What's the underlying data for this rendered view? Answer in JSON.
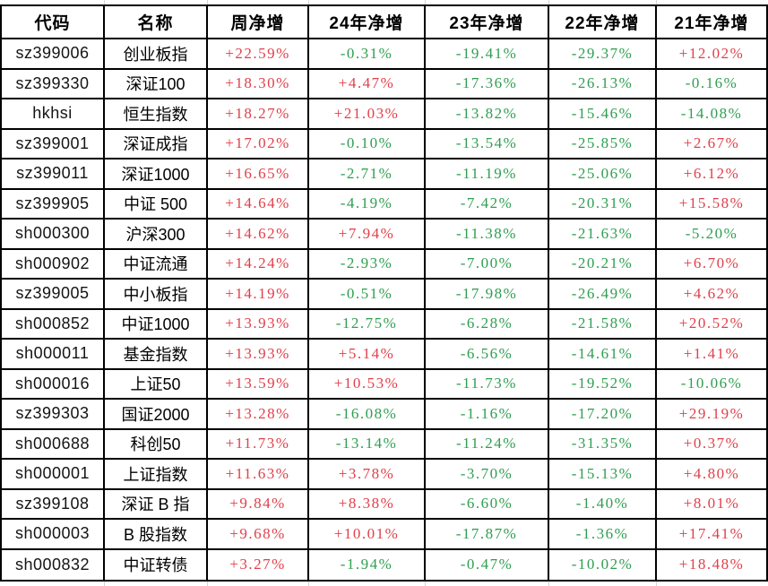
{
  "table": {
    "headers": [
      "代码",
      "名称",
      "周净增",
      "24年净增",
      "23年净增",
      "22年净增",
      "21年净增"
    ],
    "rows": [
      {
        "code": "sz399006",
        "name": "创业板指",
        "values": [
          "+22.59%",
          "-0.31%",
          "-19.41%",
          "-29.37%",
          "+12.02%"
        ]
      },
      {
        "code": "sz399330",
        "name": "深证100",
        "values": [
          "+18.30%",
          "+4.47%",
          "-17.36%",
          "-26.13%",
          "-0.16%"
        ]
      },
      {
        "code": "hkhsi",
        "name": "恒生指数",
        "values": [
          "+18.27%",
          "+21.03%",
          "-13.82%",
          "-15.46%",
          "-14.08%"
        ]
      },
      {
        "code": "sz399001",
        "name": "深证成指",
        "values": [
          "+17.02%",
          "-0.10%",
          "-13.54%",
          "-25.85%",
          "+2.67%"
        ]
      },
      {
        "code": "sz399011",
        "name": "深证1000",
        "values": [
          "+16.65%",
          "-2.71%",
          "-11.19%",
          "-25.06%",
          "+6.12%"
        ]
      },
      {
        "code": "sz399905",
        "name": "中证 500",
        "values": [
          "+14.64%",
          "-4.19%",
          "-7.42%",
          "-20.31%",
          "+15.58%"
        ]
      },
      {
        "code": "sh000300",
        "name": "沪深300",
        "values": [
          "+14.62%",
          "+7.94%",
          "-11.38%",
          "-21.63%",
          "-5.20%"
        ]
      },
      {
        "code": "sh000902",
        "name": "中证流通",
        "values": [
          "+14.24%",
          "-2.93%",
          "-7.00%",
          "-20.21%",
          "+6.70%"
        ]
      },
      {
        "code": "sz399005",
        "name": "中小板指",
        "values": [
          "+14.19%",
          "-0.51%",
          "-17.98%",
          "-26.49%",
          "+4.62%"
        ]
      },
      {
        "code": "sh000852",
        "name": "中证1000",
        "values": [
          "+13.93%",
          "-12.75%",
          "-6.28%",
          "-21.58%",
          "+20.52%"
        ]
      },
      {
        "code": "sh000011",
        "name": "基金指数",
        "values": [
          "+13.93%",
          "+5.14%",
          "-6.56%",
          "-14.61%",
          "+1.41%"
        ]
      },
      {
        "code": "sh000016",
        "name": "上证50",
        "values": [
          "+13.59%",
          "+10.53%",
          "-11.73%",
          "-19.52%",
          "-10.06%"
        ]
      },
      {
        "code": "sz399303",
        "name": "国证2000",
        "values": [
          "+13.28%",
          "-16.08%",
          "-1.16%",
          "-17.20%",
          "+29.19%"
        ]
      },
      {
        "code": "sh000688",
        "name": "科创50",
        "values": [
          "+11.73%",
          "-13.14%",
          "-11.24%",
          "-31.35%",
          "+0.37%"
        ]
      },
      {
        "code": "sh000001",
        "name": "上证指数",
        "values": [
          "+11.63%",
          "+3.78%",
          "-3.70%",
          "-15.13%",
          "+4.80%"
        ]
      },
      {
        "code": "sz399108",
        "name": "深证 B 指",
        "values": [
          "+9.84%",
          "+8.38%",
          "-6.60%",
          "-1.40%",
          "+8.01%"
        ]
      },
      {
        "code": "sh000003",
        "name": "B 股指数",
        "values": [
          "+9.68%",
          "+10.01%",
          "-17.87%",
          "-1.36%",
          "+17.41%"
        ]
      },
      {
        "code": "sh000832",
        "name": "中证转债",
        "values": [
          "+3.27%",
          "-1.94%",
          "-0.47%",
          "-10.02%",
          "+18.48%"
        ]
      }
    ]
  },
  "colors": {
    "positive": "#e0404a",
    "negative": "#2f9e50",
    "grid_line": "#000000",
    "tick_line": "#d6d6d6"
  }
}
